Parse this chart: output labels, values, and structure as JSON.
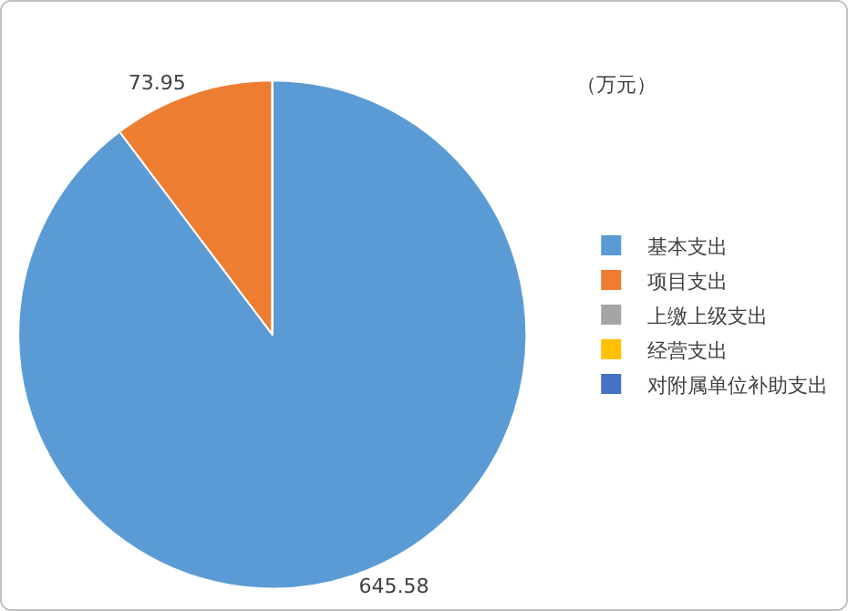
{
  "chart_data": {
    "type": "pie",
    "categories": [
      "基本支出",
      "项目支出",
      "上缴上级支出",
      "经营支出",
      "对附属单位补助支出"
    ],
    "values": [
      645.58,
      73.95,
      0,
      0,
      0
    ],
    "colors": [
      "#5b9bd5",
      "#ed7d31",
      "#a5a5a5",
      "#ffc000",
      "#4472c4"
    ],
    "value_labels": [
      "645.58",
      "73.95",
      null,
      null,
      null
    ],
    "annotations": [
      "（万元）"
    ],
    "legend": "right"
  }
}
